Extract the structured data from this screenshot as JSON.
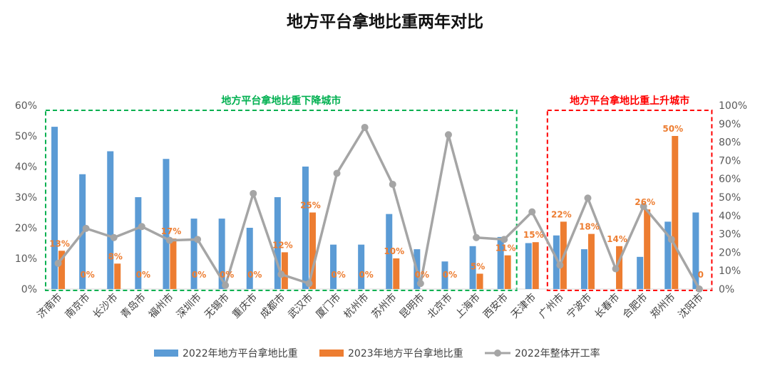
{
  "chart_data": {
    "type": "bar",
    "title": "地方平台拿地比重两年对比",
    "categories": [
      "济南市",
      "南京市",
      "长沙市",
      "青岛市",
      "福州市",
      "深圳市",
      "无锡市",
      "重庆市",
      "成都市",
      "武汉市",
      "厦门市",
      "杭州市",
      "苏州市",
      "昆明市",
      "北京市",
      "上海市",
      "西安市",
      "天津市",
      "广州市",
      "宁波市",
      "长春市",
      "合肥市",
      "郑州市",
      "沈阳市"
    ],
    "series": [
      {
        "name": "2022年地方平台拿地比重",
        "type": "bar",
        "axis": "left",
        "color": "#5B9BD5",
        "values": [
          53,
          37.5,
          45,
          30,
          42.5,
          23,
          23,
          20,
          30,
          40,
          14.5,
          14.5,
          24.5,
          13,
          9,
          14,
          17,
          15,
          17.5,
          13,
          0,
          10.5,
          22,
          25
        ]
      },
      {
        "name": "2023年地方平台拿地比重",
        "type": "bar",
        "axis": "left",
        "color": "#ED7D31",
        "values": [
          12.5,
          0,
          8.3,
          0,
          16.5,
          0,
          0,
          0,
          12,
          25,
          0,
          0,
          10,
          0,
          0,
          5,
          11,
          15.3,
          22,
          18,
          14,
          26,
          50,
          0
        ]
      },
      {
        "name": "2022年整体开工率",
        "type": "line",
        "axis": "right",
        "color": "#A5A5A5",
        "values": [
          14,
          33,
          28,
          34,
          26.5,
          27,
          2,
          52,
          8,
          3,
          63,
          88,
          57,
          3,
          84,
          28,
          27,
          42,
          13,
          49.5,
          11,
          45,
          27,
          0
        ]
      }
    ],
    "data_labels": [
      "13%",
      "0%",
      "8%",
      "0%",
      "17%",
      "0%",
      "0%",
      "0%",
      "12%",
      "25%",
      "0%",
      "0%",
      "10%",
      "0%",
      "0%",
      "5%",
      "11%",
      "15%",
      "22%",
      "18%",
      "14%",
      "26%",
      "50%",
      "0"
    ],
    "y_left": {
      "ticks": [
        "0%",
        "10%",
        "20%",
        "30%",
        "40%",
        "50%",
        "60%"
      ],
      "min": 0,
      "max": 60
    },
    "y_right": {
      "ticks": [
        "0%",
        "10%",
        "20%",
        "30%",
        "40%",
        "50%",
        "60%",
        "70%",
        "80%",
        "90%",
        "100%"
      ],
      "min": 0,
      "max": 100
    },
    "regions": [
      {
        "label": "地方平台拿地比重下降城市",
        "from": 0,
        "to": 16,
        "color": "#00B050"
      },
      {
        "label": "地方平台拿地比重上升城市",
        "from": 18,
        "to": 23,
        "color": "#FF0000"
      }
    ],
    "grid": false,
    "legend_position": "bottom"
  }
}
